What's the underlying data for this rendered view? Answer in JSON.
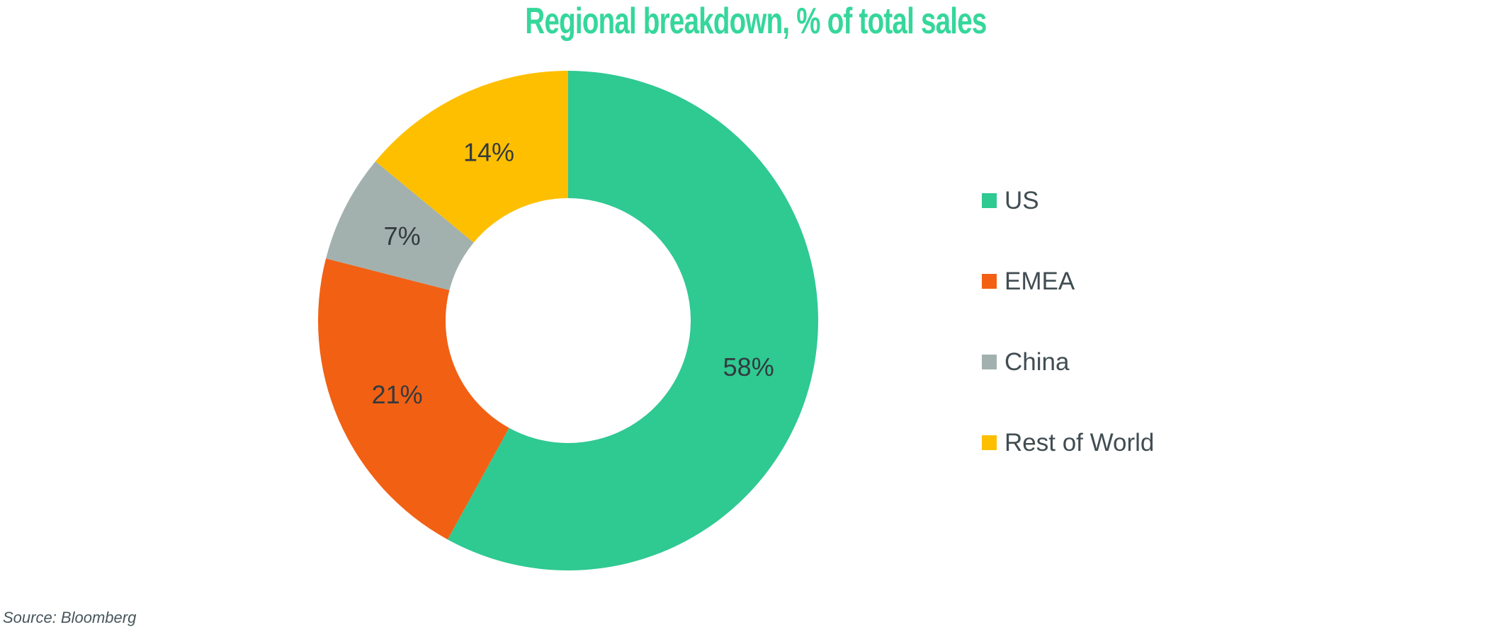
{
  "chart_data": {
    "type": "pie",
    "subtype": "donut",
    "title": "Regional breakdown, % of total sales",
    "title_color": "#35D79A",
    "categories": [
      "US",
      "EMEA",
      "China",
      "Rest of World"
    ],
    "values": [
      58,
      21,
      7,
      14
    ],
    "slice_labels": [
      "58%",
      "21%",
      "7%",
      "14%"
    ],
    "colors": [
      "#2FC992",
      "#F26014",
      "#A3B1AE",
      "#FEBF00"
    ],
    "slice_label_color": "#333A3E",
    "legend_text_color": "#414D52",
    "start_angle_deg": 0,
    "direction": "clockwise",
    "inner_radius_ratio": 0.49,
    "legend_position": "right",
    "background": "#FFFFFF"
  },
  "footer": {
    "source_note": "Source: Bloomberg",
    "source_color": "#47565B"
  }
}
